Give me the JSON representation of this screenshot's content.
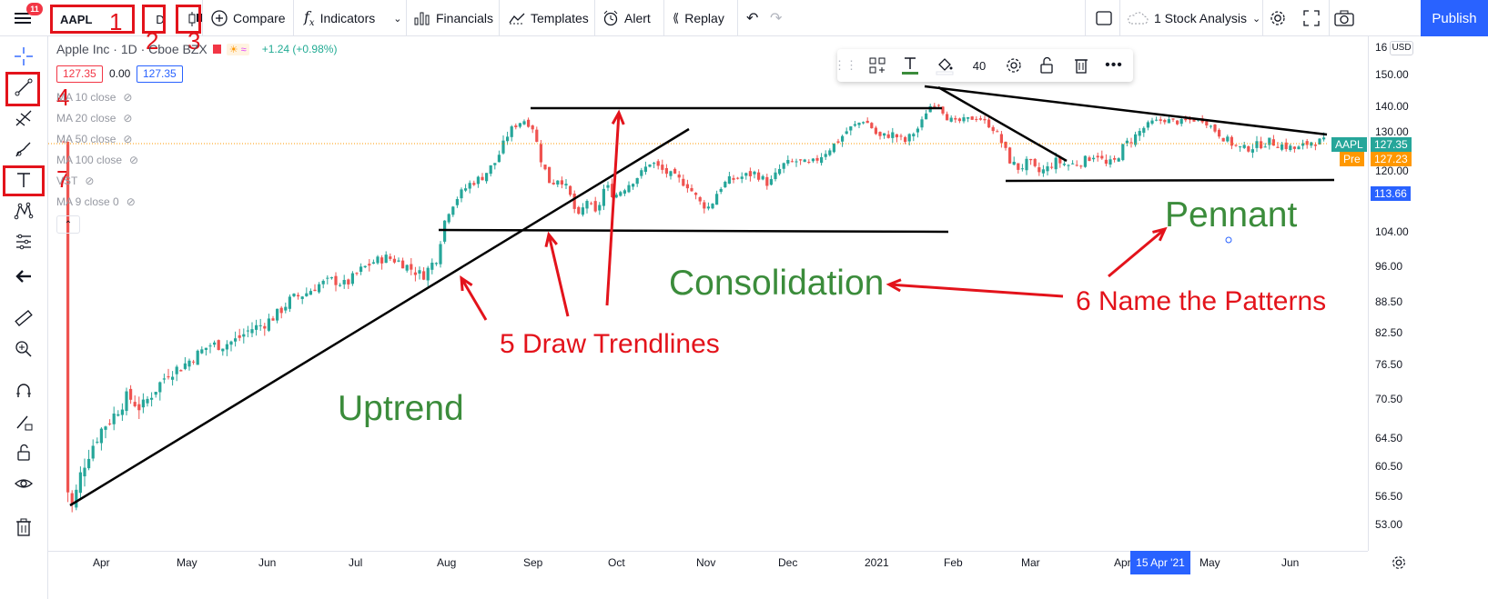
{
  "topbar": {
    "menu_badge": "11",
    "symbol": "AAPL",
    "interval": "D",
    "compare_label": "Compare",
    "indicators_label": "Indicators",
    "financials_label": "Financials",
    "templates_label": "Templates",
    "alert_label": "Alert",
    "replay_label": "Replay",
    "layout_name": "1 Stock Analysis",
    "publish_label": "Publish"
  },
  "legend": {
    "title": "Apple Inc · 1D · Cboe BZX",
    "change": "+1.24 (+0.98%)",
    "bid": "127.35",
    "spread": "0.00",
    "ask": "127.35",
    "ma_rows": [
      "MA 10 close",
      "MA 20 close",
      "MA 50 close",
      "MA 100 close",
      "VST",
      "MA 9 close 0"
    ]
  },
  "floating_toolbar": {
    "size_value": "40"
  },
  "annotations": {
    "num_1": "1",
    "num_2": "2",
    "num_3": "3",
    "num_4": "4",
    "num_7": "7",
    "draw_trendlines": "5 Draw Trendlines",
    "name_patterns": "6 Name the Patterns",
    "uptrend": "Uptrend",
    "consolidation": "Consolidation",
    "pennant": "Pennant"
  },
  "price_axis": {
    "currency": "USD",
    "top_partial": "16",
    "ticks": [
      "150.00",
      "140.00",
      "130.00",
      "120.00",
      "104.00",
      "96.00",
      "88.50",
      "82.50",
      "76.50",
      "70.50",
      "64.50",
      "60.50",
      "56.50",
      "53.00"
    ],
    "aapl_label": "AAPL",
    "aapl_price": "127.35",
    "pre_label": "Pre",
    "pre_price": "127.23",
    "cursor_price": "113.66"
  },
  "time_axis": {
    "ticks": [
      "Apr",
      "May",
      "Jun",
      "Jul",
      "Aug",
      "Sep",
      "Oct",
      "Nov",
      "Dec",
      "2021",
      "Feb",
      "Mar",
      "Apr",
      "May",
      "Jun"
    ],
    "cursor_date": "15 Apr '21"
  },
  "colors": {
    "accent": "#2962ff",
    "annotation_red": "#e3131b",
    "annotation_green": "#3b8c3b",
    "up_candle": "#26a69a",
    "down_candle": "#ef5350"
  }
}
